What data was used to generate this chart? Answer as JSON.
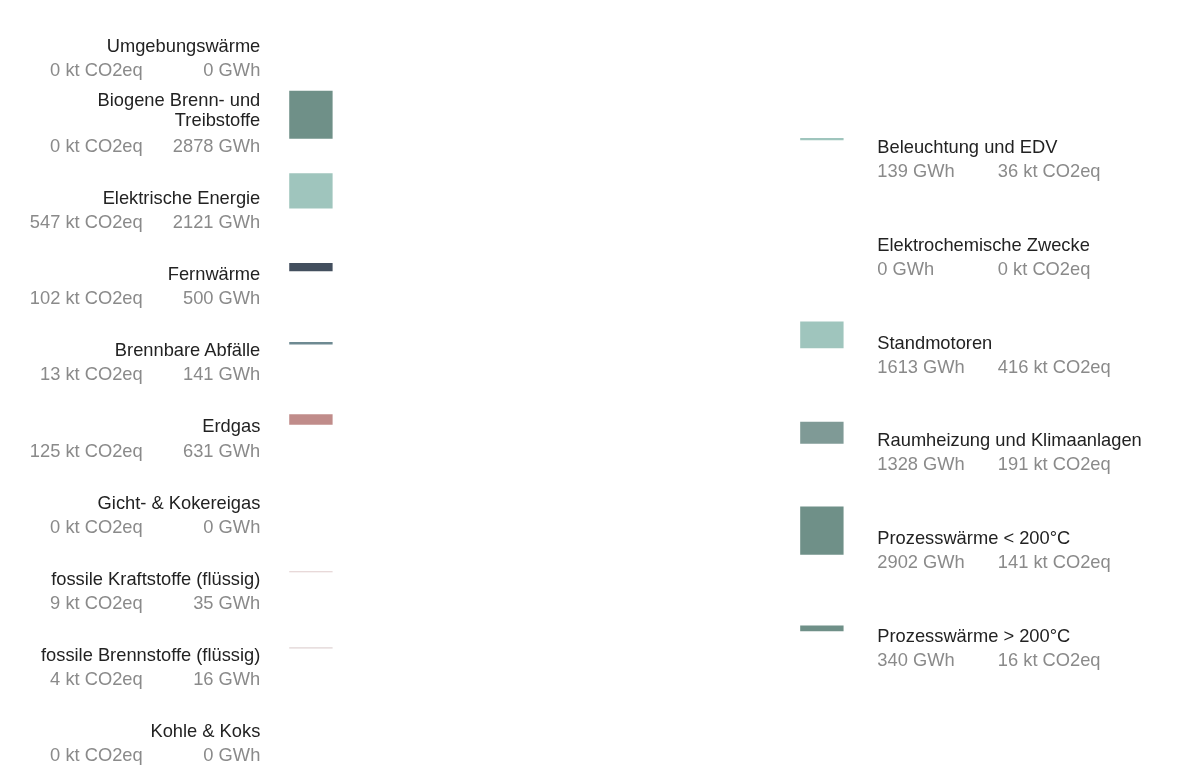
{
  "chart_data": [
    {
      "type": "other",
      "categories": [
        "Umgebungswärme",
        "Biogene Brenn- und\nTreibstoffe",
        "Elektrische Energie",
        "Fernwärme",
        "Brennbare Abfälle",
        "Erdgas",
        "Gicht- & Kokereigas",
        "fossile Kraftstoffe (flüssig)",
        "fossile Brennstoffe (flüssig)",
        "Kohle & Koks"
      ],
      "series": [
        {
          "type": "other",
          "values": [
            0,
            0,
            547,
            102,
            13,
            125,
            0,
            9,
            4,
            0
          ],
          "value_labels": [
            "0 kt CO2eq",
            "0 kt CO2eq",
            "547 kt CO2eq",
            "102 kt CO2eq",
            "13 kt CO2eq",
            "125 kt CO2eq",
            "0 kt CO2eq",
            "9 kt CO2eq",
            "4 kt CO2eq",
            "0 kt CO2eq"
          ]
        },
        {
          "type": "bar",
          "values": [
            0,
            2878,
            2121,
            500,
            141,
            631,
            0,
            35,
            16,
            0
          ],
          "value_labels": [
            "0 GWh",
            "2878 GWh",
            "2121 GWh",
            "500 GWh",
            "141 GWh",
            "631 GWh",
            "0 GWh",
            "35 GWh",
            "16 GWh",
            "0 GWh"
          ],
          "colors": [
            "#9fc5bd",
            "#6f9088",
            "#9fc5bd",
            "#434f5e",
            "#6e8a92",
            "#c08c8a",
            "#8a8a8a",
            "#c9a8a8",
            "#6b2f2f",
            "#555555"
          ]
        }
      ]
    },
    {
      "type": "other",
      "categories": [
        "Beleuchtung und EDV",
        "Elektrochemische Zwecke",
        "Standmotoren",
        "Raumheizung und Klimaanlagen",
        "Prozesswärme < 200°C",
        "Prozesswärme > 200°C"
      ],
      "series": [
        {
          "type": "bar",
          "values": [
            139,
            0,
            1613,
            1328,
            2902,
            340
          ],
          "value_labels": [
            "139 GWh",
            "0 GWh",
            "1613 GWh",
            "1328 GWh",
            "2902 GWh",
            "340 GWh"
          ],
          "colors": [
            "#9fc5bd",
            "#9fc5bd",
            "#9fc5bd",
            "#7f9a96",
            "#6f9088",
            "#6f9088"
          ]
        },
        {
          "type": "other",
          "values": [
            36,
            0,
            416,
            191,
            141,
            16
          ],
          "value_labels": [
            "36 kt CO2eq",
            "0 kt CO2eq",
            "416 kt CO2eq",
            "191 kt CO2eq",
            "141 kt CO2eq",
            "16 kt CO2eq"
          ]
        }
      ]
    }
  ]
}
